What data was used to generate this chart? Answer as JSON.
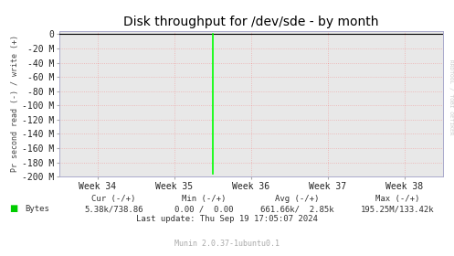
{
  "title": "Disk throughput for /dev/sde - by month",
  "ylabel": "Pr second read (-) / write (+)",
  "background_color": "#ffffff",
  "plot_bg_color": "#e8e8e8",
  "grid_color": "#ff0000",
  "grid_alpha": 0.25,
  "grid_linestyle": ":",
  "xlim_weeks": [
    33.5,
    38.5
  ],
  "ylim": [
    -200,
    5
  ],
  "yticks": [
    0,
    -20,
    -40,
    -60,
    -80,
    -100,
    -120,
    -140,
    -160,
    -180,
    -200
  ],
  "ytick_labels": [
    "0",
    "-20 M",
    "-40 M",
    "-60 M",
    "-80 M",
    "-100 M",
    "-120 M",
    "-140 M",
    "-160 M",
    "-180 M",
    "-200 M"
  ],
  "xtick_positions": [
    34,
    35,
    36,
    37,
    38
  ],
  "xtick_labels": [
    "Week 34",
    "Week 35",
    "Week 36",
    "Week 37",
    "Week 38"
  ],
  "spike_x": 35.5,
  "spike_color": "#00ff00",
  "spike_linewidth": 1.2,
  "border_color": "#aaaaaa",
  "legend_label": "Bytes",
  "legend_color": "#00cc00",
  "cur_label": "Cur (-/+)",
  "cur_value": "5.38k/738.86",
  "min_label": "Min (-/+)",
  "min_value": "0.00 /  0.00",
  "avg_label": "Avg (-/+)",
  "avg_value": "661.66k/  2.85k",
  "max_label": "Max (-/+)",
  "max_value": "195.25M/133.42k",
  "last_update": "Last update: Thu Sep 19 17:05:07 2024",
  "munin_text": "Munin 2.0.37-1ubuntu0.1",
  "rrdtool_text": "RRDTOOL / TOBI OETIKER",
  "title_fontsize": 10,
  "tick_fontsize": 7,
  "ylabel_fontsize": 6,
  "footer_fontsize": 6.5,
  "munin_fontsize": 6
}
